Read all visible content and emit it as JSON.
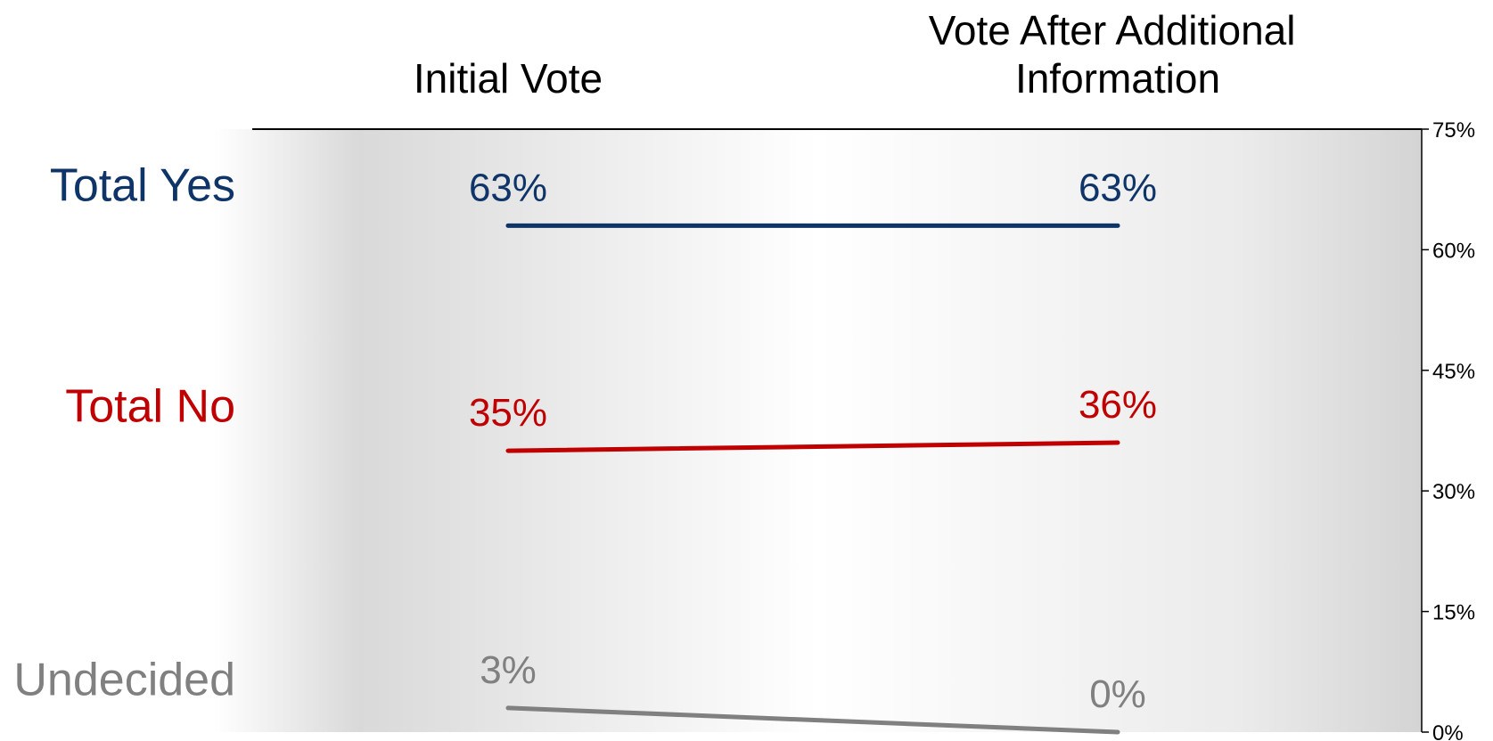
{
  "chart_data": {
    "type": "line",
    "categories": [
      "Initial Vote",
      "Vote After Additional Information"
    ],
    "series": [
      {
        "name": "Total Yes",
        "values": [
          63,
          63
        ],
        "labels": [
          "63%",
          "63%"
        ],
        "color": "#0e3468"
      },
      {
        "name": "Total No",
        "values": [
          35,
          36
        ],
        "labels": [
          "35%",
          "36%"
        ],
        "color": "#c00000"
      },
      {
        "name": "Undecided",
        "values": [
          3,
          0
        ],
        "labels": [
          "3%",
          "0%"
        ],
        "color": "#808080"
      }
    ],
    "yaxis": {
      "position": "right",
      "ylim": [
        0,
        75
      ],
      "ticks": [
        0,
        15,
        30,
        45,
        60,
        75
      ],
      "tick_labels": [
        "0%",
        "15%",
        "30%",
        "45%",
        "60%",
        "75%"
      ]
    },
    "legend": "left, inline with series",
    "grid": false
  }
}
